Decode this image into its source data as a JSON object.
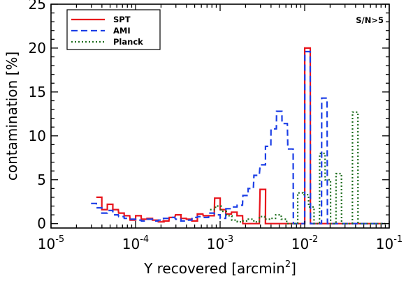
{
  "chart_data": {
    "type": "line",
    "xscale": "log",
    "xlim": [
      1e-05,
      0.1
    ],
    "ylim": [
      -0.5,
      25
    ],
    "yticks": [
      0,
      5,
      10,
      15,
      20,
      25
    ],
    "xtick_labels": [
      {
        "base": "10",
        "exp": "-5",
        "value": 1e-05
      },
      {
        "base": "10",
        "exp": "-4",
        "value": 0.0001
      },
      {
        "base": "10",
        "exp": "-3",
        "value": 0.001
      },
      {
        "base": "10",
        "exp": "-2",
        "value": 0.01
      },
      {
        "base": "10",
        "exp": "-1",
        "value": 0.1
      }
    ],
    "xlabel": "Y recovered [arcmin",
    "xlabel_sup": "2",
    "xlabel_close": "]",
    "ylabel": "contamination [%]",
    "annotation": "S/N>5",
    "legend_position": "top-left",
    "series": [
      {
        "name": "SPT",
        "color": "#e8141c",
        "dash": "solid",
        "width": 2.2,
        "x": [
          3.7e-05,
          4.3e-05,
          5e-05,
          5.8e-05,
          6.8e-05,
          7.9e-05,
          9.3e-05,
          0.000108,
          0.000126,
          0.000147,
          0.000171,
          0.0002,
          0.00023,
          0.00027,
          0.00032,
          0.00037,
          0.00043,
          0.0005,
          0.00058,
          0.00068,
          0.00079,
          0.00093,
          0.00108,
          0.00126,
          0.00147,
          0.00171,
          0.002,
          0.0023,
          0.0027,
          0.0032,
          0.0037,
          0.0043,
          0.005,
          0.0058,
          0.0068,
          0.0079,
          0.0093,
          0.0108,
          0.0126,
          0.0147,
          0.0171,
          0.02,
          0.023,
          0.027,
          0.032,
          0.037,
          0.043,
          0.05,
          0.058,
          0.068,
          0.079
        ],
        "y": [
          3.0,
          1.6,
          2.2,
          1.6,
          1.2,
          0.9,
          0.4,
          0.9,
          0.5,
          0.6,
          0.4,
          0.2,
          0.3,
          0.7,
          1.0,
          0.6,
          0.5,
          0.3,
          1.1,
          0.9,
          0.9,
          2.9,
          1.6,
          1.1,
          1.3,
          0.9,
          0.0,
          0.0,
          0.0,
          3.9,
          0.0,
          0.0,
          0.0,
          0.0,
          0.0,
          0.0,
          0.0,
          20.0,
          0.0,
          0.0,
          0.0,
          0.0,
          0.0,
          0.0,
          0.0,
          0.0,
          0.0,
          0.0,
          0.0,
          0.0,
          0.0
        ]
      },
      {
        "name": "AMI",
        "color": "#1c3fe6",
        "dash": "9,5",
        "width": 2.2,
        "x": [
          3.2e-05,
          3.7e-05,
          4.3e-05,
          5e-05,
          5.8e-05,
          6.8e-05,
          7.9e-05,
          9.3e-05,
          0.000108,
          0.000126,
          0.000147,
          0.000171,
          0.0002,
          0.00023,
          0.00027,
          0.00032,
          0.00037,
          0.00043,
          0.0005,
          0.00058,
          0.00068,
          0.00079,
          0.00093,
          0.00108,
          0.00126,
          0.00147,
          0.00171,
          0.002,
          0.0023,
          0.0027,
          0.0032,
          0.0037,
          0.0043,
          0.005,
          0.0058,
          0.0068,
          0.0079,
          0.0093,
          0.0108,
          0.0126,
          0.0147,
          0.0171,
          0.02,
          0.023,
          0.027,
          0.032,
          0.037,
          0.043,
          0.05,
          0.058,
          0.068,
          0.079
        ],
        "y": [
          2.3,
          1.8,
          1.2,
          1.5,
          1.0,
          0.8,
          0.6,
          0.5,
          0.4,
          0.3,
          0.5,
          0.3,
          0.4,
          0.6,
          0.7,
          0.5,
          0.3,
          0.4,
          0.7,
          0.8,
          0.7,
          1.2,
          1.0,
          0.6,
          1.7,
          1.9,
          2.1,
          3.2,
          4.0,
          5.5,
          6.7,
          8.8,
          10.8,
          12.8,
          11.4,
          8.5,
          0.0,
          0.0,
          19.6,
          0.0,
          0.0,
          14.3,
          0.0,
          0.0,
          0.0,
          0.0,
          0.0,
          0.0,
          0.0,
          0.0,
          0.0,
          0.0
        ]
      },
      {
        "name": "Planck",
        "color": "#1e6e1e",
        "dash": "2,3",
        "width": 2.2,
        "x": [
          0.00082,
          0.00095,
          0.0011,
          0.00128,
          0.00148,
          0.00172,
          0.002,
          0.00232,
          0.0027,
          0.00313,
          0.00363,
          0.0042,
          0.0049,
          0.0057,
          0.0066,
          0.0077,
          0.0089,
          0.0103,
          0.012,
          0.0139,
          0.0162,
          0.0188,
          0.0218,
          0.0253,
          0.0294,
          0.0341,
          0.0396,
          0.046,
          0.0534,
          0.062,
          0.072,
          0.084
        ],
        "y": [
          1.6,
          2.0,
          1.4,
          0.9,
          0.4,
          0.2,
          0.3,
          0.5,
          0.2,
          0.8,
          0.5,
          0.6,
          1.0,
          0.5,
          0.0,
          0.0,
          3.5,
          3.3,
          1.9,
          0.0,
          8.0,
          5.0,
          0.0,
          5.7,
          0.0,
          0.0,
          12.7,
          0.0,
          0.0,
          0.0,
          0.0,
          0.0
        ]
      }
    ]
  }
}
